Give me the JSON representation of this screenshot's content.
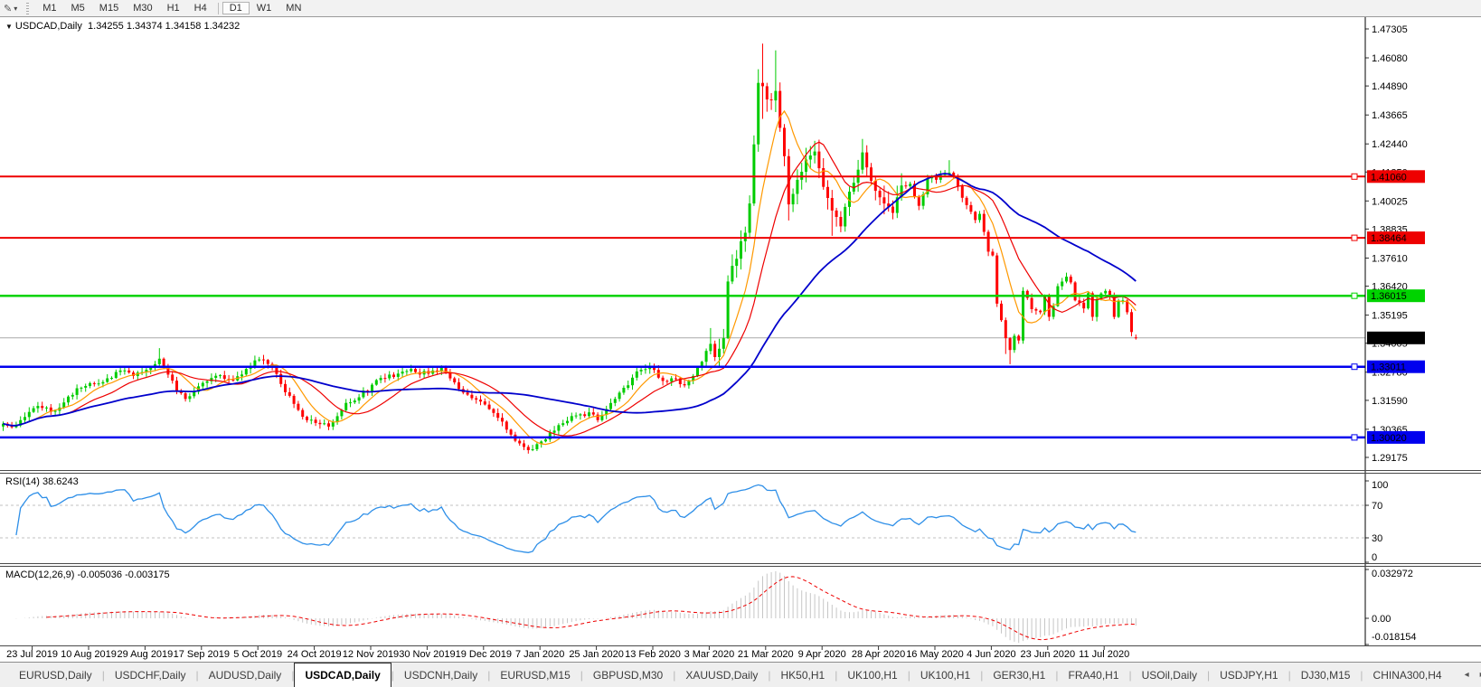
{
  "toolbar": {
    "draw_icon": "✎",
    "dropdown_icon": "▾",
    "timeframes": [
      "M1",
      "M5",
      "M15",
      "M30",
      "H1",
      "H4",
      "D1",
      "W1",
      "MN"
    ],
    "active_timeframe": "D1",
    "separator_before": "D1"
  },
  "chart": {
    "title": "USDCAD,Daily",
    "menu_icon": "▼",
    "ohlc_text": "1.34255 1.34374 1.34158 1.34232"
  },
  "chart_data": {
    "type": "candlestick",
    "symbol": "USDCAD",
    "timeframe": "Daily",
    "last_candle": {
      "open": 1.34255,
      "high": 1.34374,
      "low": 1.34158,
      "close": 1.34232
    },
    "current_price": 1.34232,
    "current_price_label": "1.34232",
    "price_range": {
      "top": 1.47305,
      "bottom": 1.29175
    },
    "price_axis_ticks": [
      "1.47305",
      "1.46080",
      "1.44890",
      "1.43665",
      "1.42440",
      "1.41250",
      "1.40025",
      "1.38835",
      "1.37610",
      "1.36420",
      "1.35195",
      "1.34005",
      "1.32780",
      "1.31590",
      "1.30365",
      "1.29175"
    ],
    "x_labels": [
      "23 Jul 2019",
      "10 Aug 2019",
      "29 Aug 2019",
      "17 Sep 2019",
      "5 Oct 2019",
      "24 Oct 2019",
      "12 Nov 2019",
      "30 Nov 2019",
      "19 Dec 2019",
      "7 Jan 2020",
      "25 Jan 2020",
      "13 Feb 2020",
      "3 Mar 2020",
      "21 Mar 2020",
      "9 Apr 2020",
      "28 Apr 2020",
      "16 May 2020",
      "4 Jun 2020",
      "23 Jun 2020",
      "11 Jul 2020"
    ],
    "candles_per_label": 13,
    "first_label_candle": 7,
    "candle_count": 262,
    "horizontal_lines": [
      {
        "price": 1.4106,
        "label": "1.41060",
        "color": "#ee0000",
        "width": 2
      },
      {
        "price": 1.38464,
        "label": "1.38464",
        "color": "#ee0000",
        "width": 2
      },
      {
        "price": 1.36015,
        "label": "1.36015",
        "color": "#00d300",
        "width": 2.5
      },
      {
        "price": 1.33011,
        "label": "1.33011",
        "color": "#0000ee",
        "width": 2.5
      },
      {
        "price": 1.3002,
        "label": "1.30020",
        "color": "#0000ee",
        "width": 2.5
      }
    ],
    "moving_averages": [
      {
        "period": 8,
        "color": "#ff9900",
        "width": 1.2
      },
      {
        "period": 16,
        "color": "#ee0000",
        "width": 1.2
      },
      {
        "period": 45,
        "color": "#0000cc",
        "width": 1.8
      }
    ],
    "colors": {
      "up": "#00cc00",
      "down": "#ff0000",
      "current_price_line": "#a8a8a8",
      "level_dash": "#c0c0c0",
      "hist": "#c6c6c6",
      "axis_line": "#000000"
    },
    "close_anchors": [
      [
        0,
        1.306
      ],
      [
        2,
        1.3045
      ],
      [
        4,
        1.3075
      ],
      [
        6,
        1.311
      ],
      [
        8,
        1.3135
      ],
      [
        11,
        1.311
      ],
      [
        14,
        1.315
      ],
      [
        17,
        1.321
      ],
      [
        21,
        1.323
      ],
      [
        24,
        1.3252
      ],
      [
        27,
        1.3285
      ],
      [
        30,
        1.3262
      ],
      [
        33,
        1.3288
      ],
      [
        36,
        1.3335
      ],
      [
        38,
        1.3268
      ],
      [
        40,
        1.3195
      ],
      [
        42,
        1.3165
      ],
      [
        45,
        1.3218
      ],
      [
        47,
        1.324
      ],
      [
        50,
        1.3265
      ],
      [
        53,
        1.3243
      ],
      [
        56,
        1.3292
      ],
      [
        58,
        1.3328
      ],
      [
        60,
        1.333
      ],
      [
        62,
        1.3298
      ],
      [
        64,
        1.3228
      ],
      [
        66,
        1.3178
      ],
      [
        68,
        1.3118
      ],
      [
        70,
        1.3075
      ],
      [
        73,
        1.3058
      ],
      [
        75,
        1.3048
      ],
      [
        77,
        1.3092
      ],
      [
        79,
        1.3148
      ],
      [
        82,
        1.3172
      ],
      [
        85,
        1.3225
      ],
      [
        88,
        1.3252
      ],
      [
        91,
        1.3272
      ],
      [
        94,
        1.3292
      ],
      [
        96,
        1.3268
      ],
      [
        99,
        1.3285
      ],
      [
        101,
        1.3302
      ],
      [
        103,
        1.3252
      ],
      [
        106,
        1.3192
      ],
      [
        109,
        1.3162
      ],
      [
        112,
        1.3122
      ],
      [
        114,
        1.3085
      ],
      [
        116,
        1.3035
      ],
      [
        118,
        1.2988
      ],
      [
        120,
        1.2962
      ],
      [
        122,
        1.2952
      ],
      [
        124,
        1.2985
      ],
      [
        126,
        1.3022
      ],
      [
        129,
        1.3062
      ],
      [
        132,
        1.3095
      ],
      [
        135,
        1.3108
      ],
      [
        137,
        1.3075
      ],
      [
        139,
        1.3122
      ],
      [
        141,
        1.3165
      ],
      [
        143,
        1.3212
      ],
      [
        145,
        1.3255
      ],
      [
        147,
        1.3288
      ],
      [
        149,
        1.3302
      ],
      [
        151,
        1.3255
      ],
      [
        153,
        1.3238
      ],
      [
        155,
        1.3252
      ],
      [
        157,
        1.3222
      ],
      [
        159,
        1.3262
      ],
      [
        161,
        1.3322
      ],
      [
        163,
        1.3398
      ],
      [
        164,
        1.3342
      ],
      [
        166,
        1.3422
      ],
      [
        167,
        1.3662
      ],
      [
        168,
        1.3728
      ],
      [
        169,
        1.3758
      ],
      [
        170,
        1.3832
      ],
      [
        171,
        1.3868
      ],
      [
        172,
        1.3992
      ],
      [
        173,
        1.4242
      ],
      [
        174,
        1.4502
      ],
      [
        175,
        1.4488
      ],
      [
        176,
        1.4432
      ],
      [
        177,
        1.4428
      ],
      [
        178,
        1.4468
      ],
      [
        179,
        1.4312
      ],
      [
        180,
        1.4192
      ],
      [
        181,
        1.3988
      ],
      [
        183,
        1.4092
      ],
      [
        185,
        1.4178
      ],
      [
        187,
        1.4212
      ],
      [
        189,
        1.4062
      ],
      [
        191,
        1.3962
      ],
      [
        193,
        1.3895
      ],
      [
        195,
        1.4042
      ],
      [
        197,
        1.4135
      ],
      [
        198,
        1.4208
      ],
      [
        200,
        1.4088
      ],
      [
        202,
        1.4018
      ],
      [
        203,
        1.3992
      ],
      [
        205,
        1.3952
      ],
      [
        207,
        1.4068
      ],
      [
        209,
        1.4075
      ],
      [
        211,
        1.3982
      ],
      [
        213,
        1.4098
      ],
      [
        215,
        1.4092
      ],
      [
        216,
        1.4112
      ],
      [
        218,
        1.4122
      ],
      [
        220,
        1.4065
      ],
      [
        222,
        1.3985
      ],
      [
        224,
        1.3922
      ],
      [
        225,
        1.3948
      ],
      [
        227,
        1.3788
      ],
      [
        228,
        1.3772
      ],
      [
        229,
        1.3568
      ],
      [
        230,
        1.3498
      ],
      [
        231,
        1.3422
      ],
      [
        232,
        1.3372
      ],
      [
        233,
        1.3432
      ],
      [
        234,
        1.3412
      ],
      [
        235,
        1.3622
      ],
      [
        236,
        1.3592
      ],
      [
        237,
        1.3545
      ],
      [
        239,
        1.3532
      ],
      [
        240,
        1.3602
      ],
      [
        241,
        1.3512
      ],
      [
        242,
        1.3558
      ],
      [
        243,
        1.3642
      ],
      [
        245,
        1.3682
      ],
      [
        246,
        1.3658
      ],
      [
        247,
        1.3582
      ],
      [
        249,
        1.3548
      ],
      [
        250,
        1.3612
      ],
      [
        251,
        1.3512
      ],
      [
        252,
        1.3588
      ],
      [
        254,
        1.3622
      ],
      [
        255,
        1.3605
      ],
      [
        256,
        1.3512
      ],
      [
        257,
        1.3578
      ],
      [
        258,
        1.3582
      ],
      [
        259,
        1.3532
      ],
      [
        260,
        1.3448
      ],
      [
        261,
        1.34232
      ]
    ],
    "wick_overrides": {
      "36": [
        1.338,
        null
      ],
      "58": [
        1.3348,
        null
      ],
      "120": [
        null,
        1.2948
      ],
      "122": [
        null,
        1.2944
      ],
      "163": [
        1.3465,
        null
      ],
      "167": [
        1.3688,
        1.3418
      ],
      "174": [
        1.456,
        null
      ],
      "175": [
        1.4668,
        1.435
      ],
      "178": [
        1.464,
        null
      ],
      "181": [
        null,
        1.392
      ],
      "191": [
        null,
        1.3855
      ],
      "198": [
        1.4265,
        null
      ],
      "218": [
        1.4175,
        null
      ],
      "231": [
        null,
        1.3355
      ],
      "232": [
        null,
        1.3312
      ]
    },
    "volatile_range": [
      165,
      208
    ],
    "indicators": {
      "rsi": {
        "label": "RSI(14) 38.6243",
        "period": 14,
        "last_value": 38.6243,
        "levels": [
          70,
          30
        ],
        "axis": [
          "100",
          "70",
          "30",
          "0"
        ],
        "color": "#2e8fe8"
      },
      "macd": {
        "label": "MACD(12,26,9) -0.005036 -0.003175",
        "fast": 12,
        "slow": 26,
        "signal": 9,
        "last_values": [
          -0.005036,
          -0.003175
        ],
        "axis_max": 0.032972,
        "axis_ticks": [
          {
            "v": 0.032972,
            "label": "0.032972"
          },
          {
            "v": 0,
            "label": "0.00"
          },
          {
            "v": -0.018154,
            "label": "-0.018154"
          }
        ],
        "hist_color": "#c6c6c6",
        "signal_color": "#ee0000"
      }
    }
  },
  "tabbar": {
    "scroll_left_icon": "◂",
    "scroll_right_icon": "▸",
    "scroll_up_icon": "▴"
  },
  "tabs": {
    "items": [
      "EURUSD,Daily",
      "USDCHF,Daily",
      "AUDUSD,Daily",
      "USDCAD,Daily",
      "USDCNH,Daily",
      "EURUSD,M15",
      "GBPUSD,M30",
      "XAUUSD,Daily",
      "HK50,H1",
      "UK100,H1",
      "UK100,H1",
      "GER30,H1",
      "FRA40,H1",
      "USOil,Daily",
      "USDJPY,H1",
      "DJ30,M15",
      "CHINA300,H4"
    ],
    "active_index": 3
  }
}
